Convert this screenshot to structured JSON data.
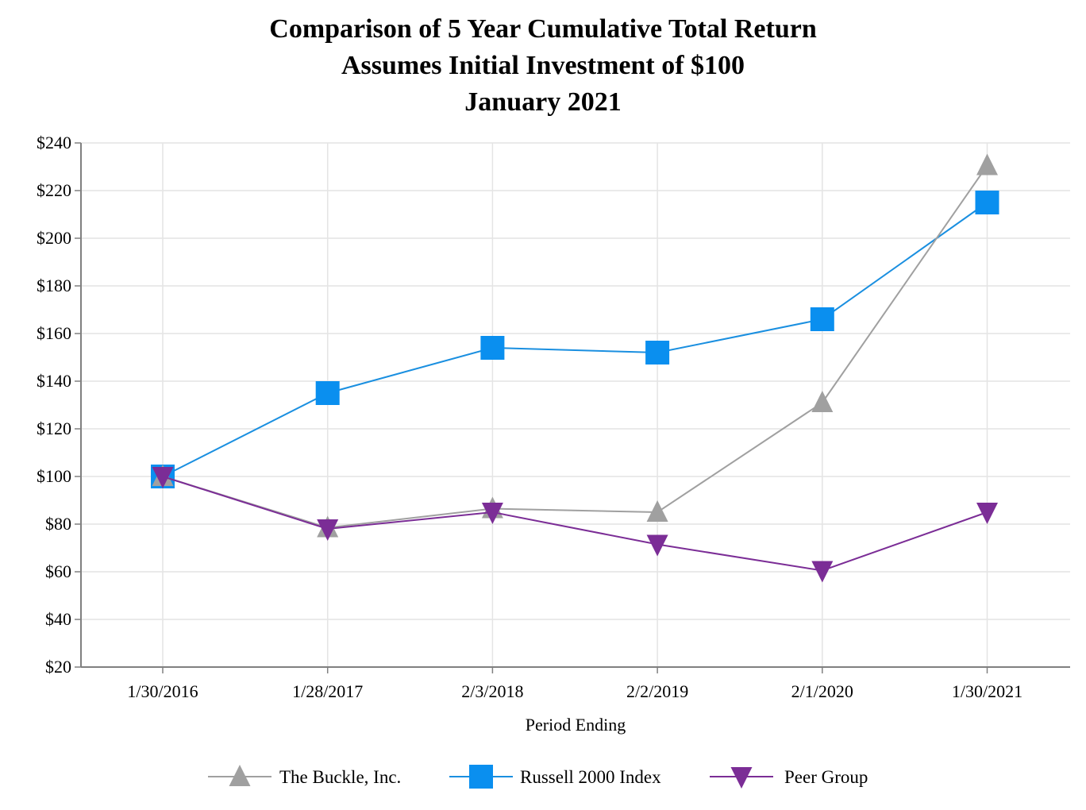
{
  "chart_data": {
    "type": "line",
    "title": [
      "Comparison of 5 Year Cumulative Total Return",
      "Assumes Initial Investment of $100",
      "January 2021"
    ],
    "xlabel": "Period Ending",
    "ylabel": "",
    "categories": [
      "1/30/2016",
      "1/28/2017",
      "2/3/2018",
      "2/2/2019",
      "2/1/2020",
      "1/30/2021"
    ],
    "ylim": [
      20,
      240
    ],
    "yticks": [
      20,
      40,
      60,
      80,
      100,
      120,
      140,
      160,
      180,
      200,
      220,
      240
    ],
    "ytick_prefix": "$",
    "grid": true,
    "legend_position": "bottom",
    "series": [
      {
        "name": "The Buckle, Inc.",
        "marker": "triangle-up",
        "color": "#a0a0a0",
        "values": [
          100,
          78.5,
          86.5,
          85,
          131,
          230.5
        ]
      },
      {
        "name": "Russell 2000 Index",
        "marker": "square",
        "color": "#0a8fef",
        "line_color": "#1a8fe0",
        "values": [
          100,
          135,
          154,
          152,
          166,
          215
        ]
      },
      {
        "name": "Peer Group",
        "marker": "triangle-down",
        "color": "#7b2d96",
        "values": [
          100,
          78,
          85,
          71.5,
          60.5,
          85
        ]
      }
    ]
  }
}
